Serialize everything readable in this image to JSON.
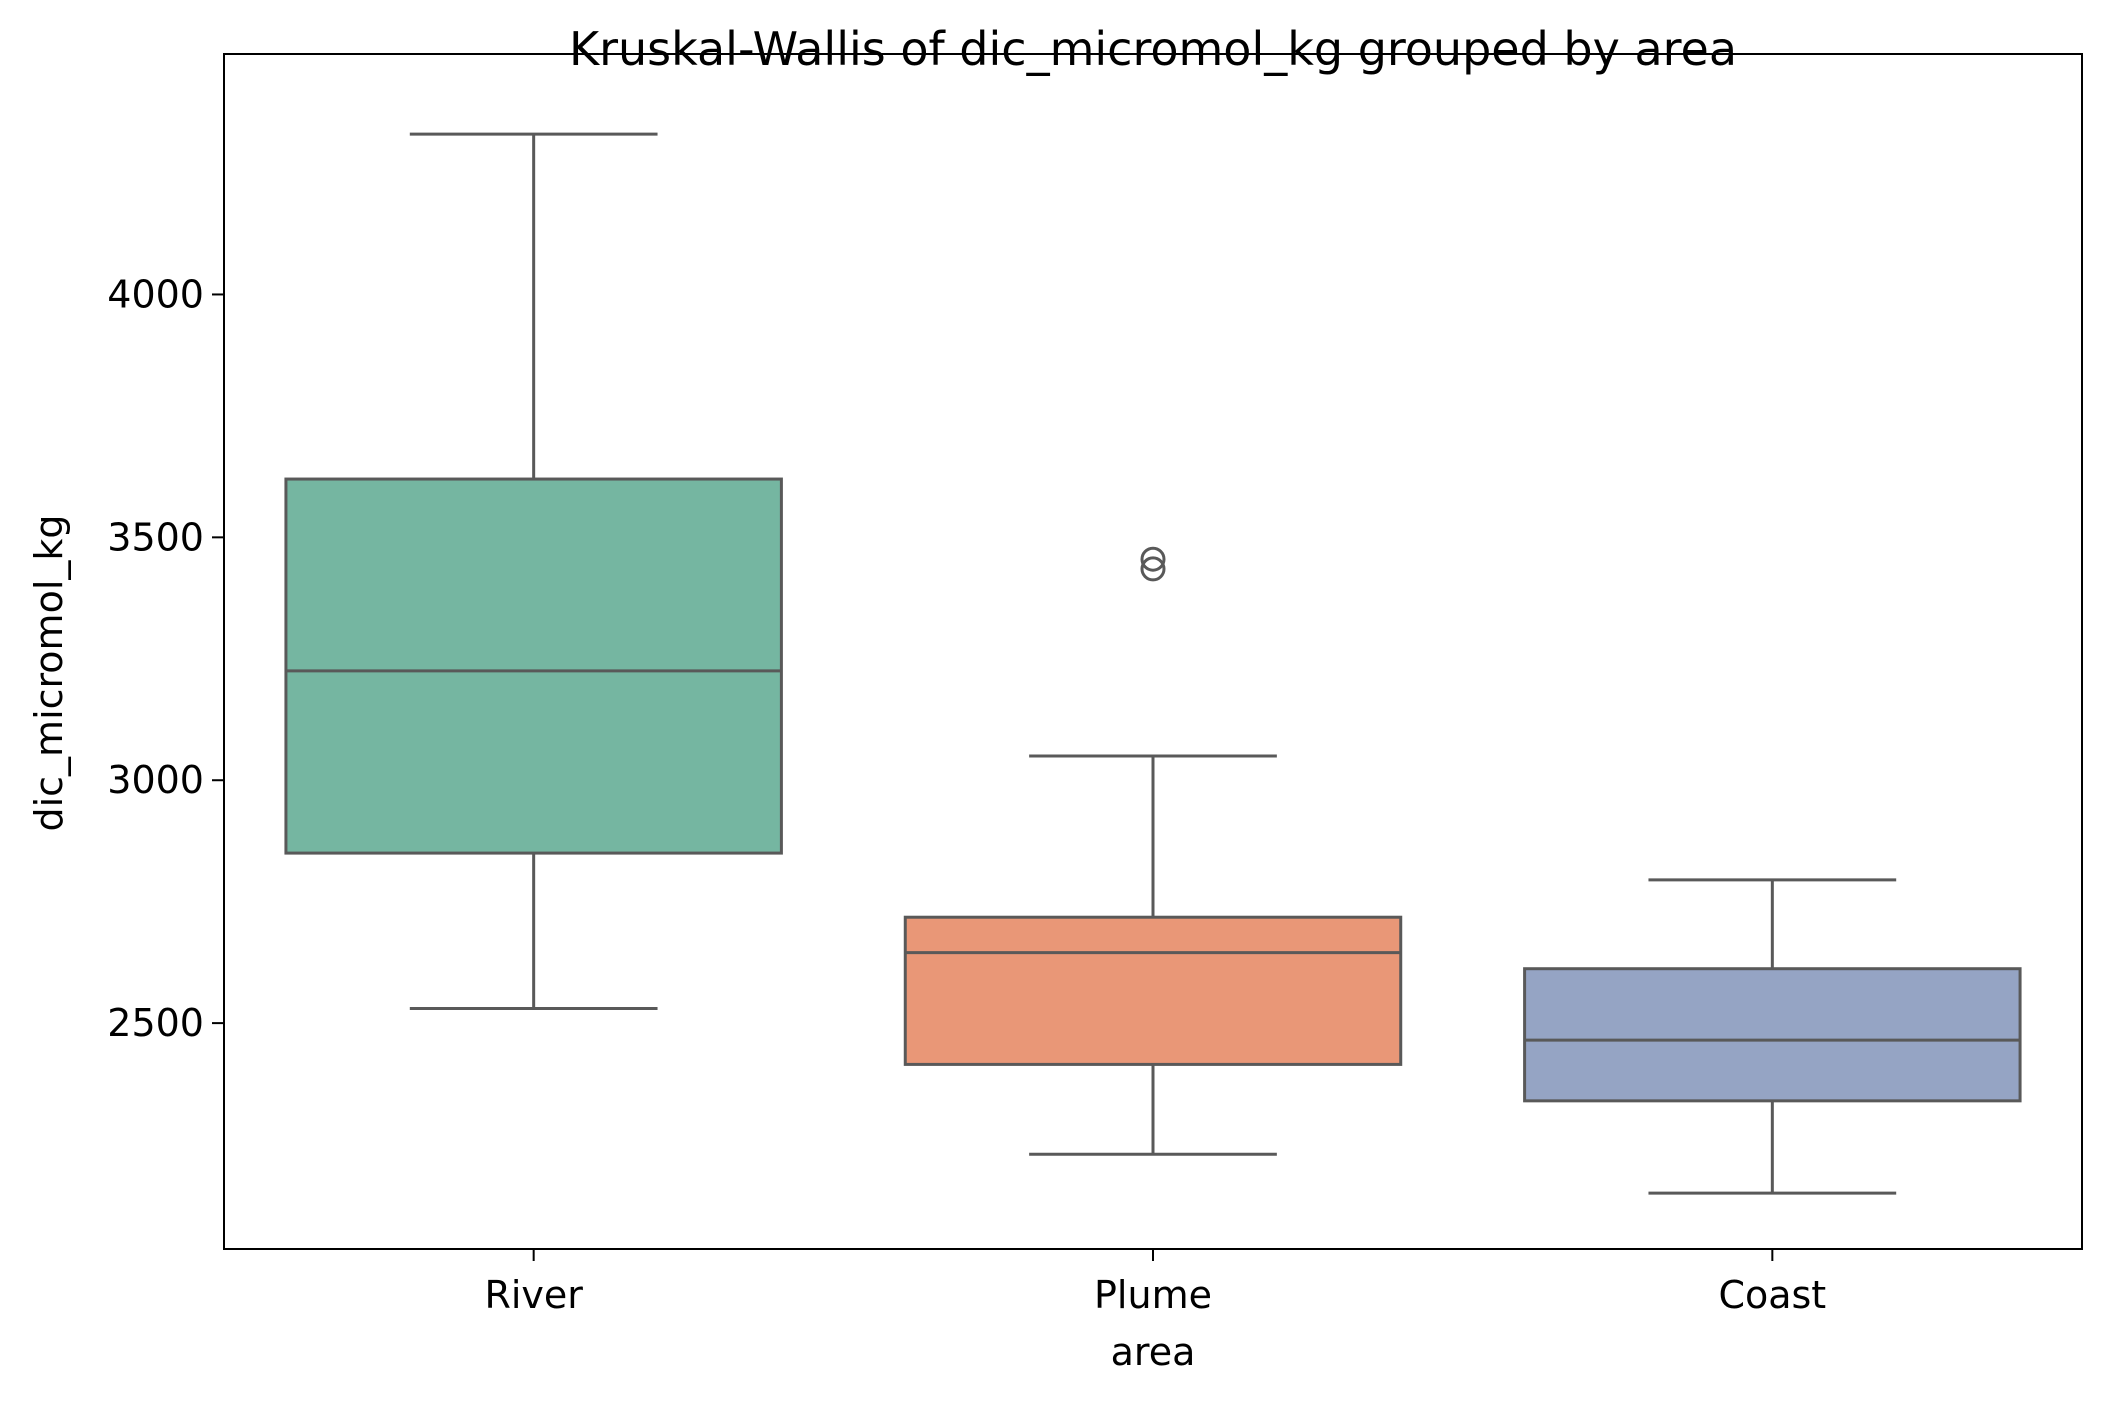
{
  "chart_data": {
    "type": "box",
    "title": "Kruskal-Wallis of dic_micromol_kg grouped by area",
    "xlabel": "area",
    "ylabel": "dic_micromol_kg",
    "ylim": [
      2035,
      4495
    ],
    "yticks": [
      2500,
      3000,
      3500,
      4000
    ],
    "grid": false,
    "legend": "none",
    "categories": [
      "River",
      "Plume",
      "Coast"
    ],
    "series": [
      {
        "category": "River",
        "whisker_low": 2530,
        "q1": 2850,
        "median": 3225,
        "q3": 3620,
        "whisker_high": 4330,
        "outliers": [],
        "color": "#75b6a1"
      },
      {
        "category": "Plume",
        "whisker_low": 2230,
        "q1": 2415,
        "median": 2645,
        "q3": 2718,
        "whisker_high": 3050,
        "outliers": [
          3435,
          3455
        ],
        "color": "#e99777"
      },
      {
        "category": "Coast",
        "whisker_low": 2150,
        "q1": 2340,
        "median": 2465,
        "q3": 2612,
        "whisker_high": 2795,
        "outliers": [],
        "color": "#95a4c4"
      }
    ],
    "line_color": "#595959"
  }
}
